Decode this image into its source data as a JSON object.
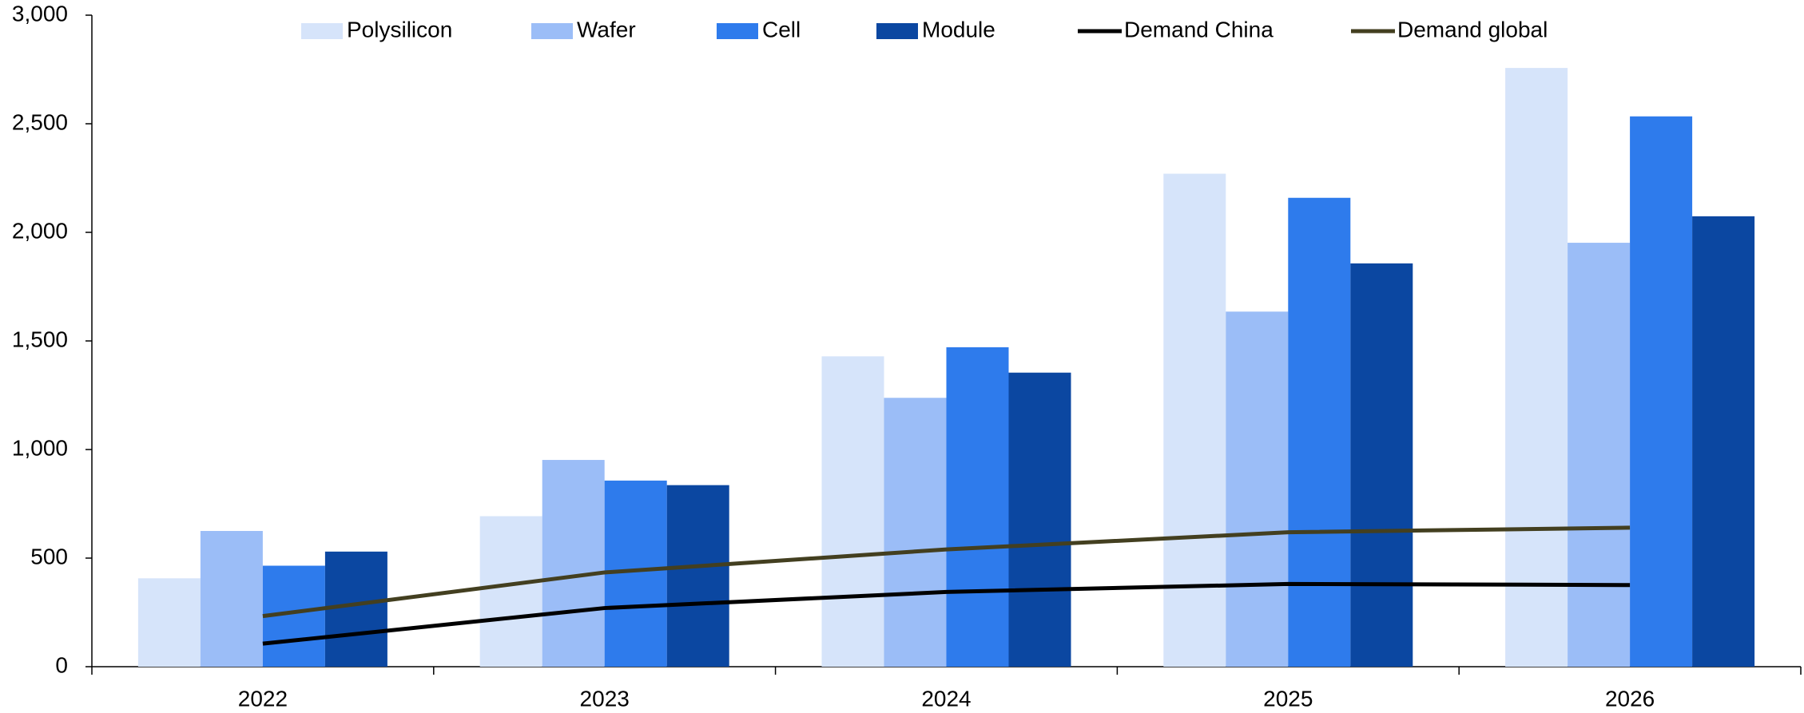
{
  "chart_data": {
    "type": "bar",
    "categories": [
      "2022",
      "2023",
      "2024",
      "2025",
      "2026"
    ],
    "series": [
      {
        "name": "Polysilicon",
        "color": "#d6e4fa",
        "values": [
          407,
          693,
          1429,
          2270,
          2757
        ]
      },
      {
        "name": "Wafer",
        "color": "#9bbdf7",
        "values": [
          625,
          952,
          1238,
          1635,
          1952
        ]
      },
      {
        "name": "Cell",
        "color": "#2e7bec",
        "values": [
          465,
          857,
          1471,
          2159,
          2534
        ]
      },
      {
        "name": "Module",
        "color": "#0b47a1",
        "values": [
          530,
          836,
          1354,
          1857,
          2074
        ]
      },
      {
        "name": "Demand China",
        "type": "line",
        "color": "#000000",
        "values": [
          106,
          270,
          344,
          381,
          376
        ]
      },
      {
        "name": "Demand global",
        "type": "line",
        "color": "#433f20",
        "values": [
          233,
          434,
          540,
          619,
          640
        ]
      }
    ],
    "ylim": [
      0,
      3000
    ],
    "yticks": [
      0,
      500,
      {
        "value": 1000,
        "label": "1,000"
      },
      {
        "value": 1500,
        "label": "1,500"
      },
      {
        "value": 2000,
        "label": "2,000"
      },
      {
        "value": 2500,
        "label": "2,500"
      },
      {
        "value": 3000,
        "label": "3,000"
      }
    ],
    "legend": "top"
  }
}
